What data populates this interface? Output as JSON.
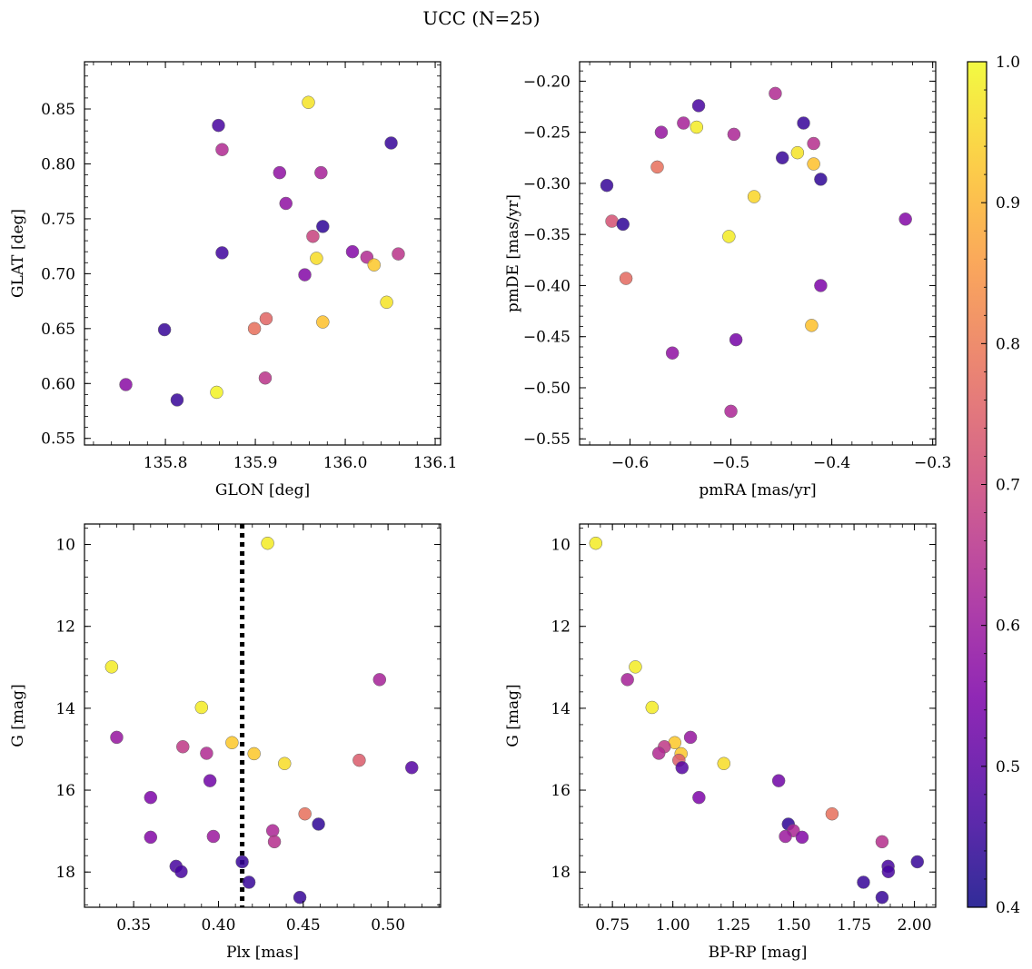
{
  "chart_data": {
    "type": "scatter",
    "title": "UCC (N=25)",
    "colorbar": {
      "colormap": "plasma",
      "range": [
        0.4,
        1.0
      ],
      "ticks": [
        "0.4",
        "0.5",
        "0.6",
        "0.7",
        "0.8",
        "0.9",
        "1.0"
      ]
    },
    "panels": [
      {
        "id": "glon-glat",
        "xlabel": "GLON [deg]",
        "ylabel": "GLAT [deg]",
        "xlim": [
          135.71,
          136.106
        ],
        "ylim": [
          0.544,
          0.893
        ],
        "xticks": [
          "135.8",
          "135.9",
          "136.0",
          "136.1"
        ],
        "yticks": [
          "0.55",
          "0.60",
          "0.65",
          "0.70",
          "0.75",
          "0.80",
          "0.85"
        ],
        "invert_y": false,
        "points": [
          {
            "x": 135.959,
            "y": 0.856,
            "c": 0.97
          },
          {
            "x": 135.859,
            "y": 0.835,
            "c": 0.47
          },
          {
            "x": 136.051,
            "y": 0.819,
            "c": 0.45
          },
          {
            "x": 135.863,
            "y": 0.813,
            "c": 0.64
          },
          {
            "x": 135.927,
            "y": 0.792,
            "c": 0.58
          },
          {
            "x": 135.973,
            "y": 0.792,
            "c": 0.62
          },
          {
            "x": 135.934,
            "y": 0.764,
            "c": 0.58
          },
          {
            "x": 135.975,
            "y": 0.743,
            "c": 0.44
          },
          {
            "x": 135.964,
            "y": 0.734,
            "c": 0.69
          },
          {
            "x": 136.008,
            "y": 0.72,
            "c": 0.56
          },
          {
            "x": 135.863,
            "y": 0.719,
            "c": 0.46
          },
          {
            "x": 136.059,
            "y": 0.718,
            "c": 0.66
          },
          {
            "x": 136.024,
            "y": 0.715,
            "c": 0.64
          },
          {
            "x": 135.968,
            "y": 0.714,
            "c": 0.96
          },
          {
            "x": 136.032,
            "y": 0.708,
            "c": 0.93
          },
          {
            "x": 135.955,
            "y": 0.699,
            "c": 0.56
          },
          {
            "x": 136.046,
            "y": 0.674,
            "c": 0.97
          },
          {
            "x": 135.912,
            "y": 0.659,
            "c": 0.76
          },
          {
            "x": 135.975,
            "y": 0.656,
            "c": 0.92
          },
          {
            "x": 135.899,
            "y": 0.65,
            "c": 0.78
          },
          {
            "x": 135.799,
            "y": 0.649,
            "c": 0.45
          },
          {
            "x": 135.911,
            "y": 0.605,
            "c": 0.66
          },
          {
            "x": 135.756,
            "y": 0.599,
            "c": 0.57
          },
          {
            "x": 135.857,
            "y": 0.592,
            "c": 0.99
          },
          {
            "x": 135.813,
            "y": 0.585,
            "c": 0.45
          }
        ]
      },
      {
        "id": "pm",
        "xlabel": "pmRA [mas/yr]",
        "ylabel": "pmDE [mas/yr]",
        "xlim": [
          -0.65,
          -0.297
        ],
        "ylim": [
          -0.556,
          -0.181
        ],
        "xticks": [
          "−0.6",
          "−0.5",
          "−0.4",
          "−0.3"
        ],
        "yticks": [
          "−0.55",
          "−0.50",
          "−0.45",
          "−0.40",
          "−0.35",
          "−0.30",
          "−0.25",
          "−0.20"
        ],
        "invert_y": false,
        "points": [
          {
            "x": -0.532,
            "y": -0.224,
            "c": 0.47
          },
          {
            "x": -0.456,
            "y": -0.212,
            "c": 0.64
          },
          {
            "x": -0.428,
            "y": -0.241,
            "c": 0.45
          },
          {
            "x": -0.547,
            "y": -0.241,
            "c": 0.62
          },
          {
            "x": -0.534,
            "y": -0.245,
            "c": 0.98
          },
          {
            "x": -0.569,
            "y": -0.25,
            "c": 0.59
          },
          {
            "x": -0.497,
            "y": -0.252,
            "c": 0.63
          },
          {
            "x": -0.418,
            "y": -0.261,
            "c": 0.65
          },
          {
            "x": -0.434,
            "y": -0.27,
            "c": 0.97
          },
          {
            "x": -0.449,
            "y": -0.275,
            "c": 0.45
          },
          {
            "x": -0.418,
            "y": -0.281,
            "c": 0.92
          },
          {
            "x": -0.573,
            "y": -0.284,
            "c": 0.78
          },
          {
            "x": -0.411,
            "y": -0.296,
            "c": 0.44
          },
          {
            "x": -0.623,
            "y": -0.302,
            "c": 0.45
          },
          {
            "x": -0.477,
            "y": -0.313,
            "c": 0.95
          },
          {
            "x": -0.327,
            "y": -0.335,
            "c": 0.56
          },
          {
            "x": -0.618,
            "y": -0.337,
            "c": 0.72
          },
          {
            "x": -0.607,
            "y": -0.34,
            "c": 0.44
          },
          {
            "x": -0.502,
            "y": -0.352,
            "c": 0.98
          },
          {
            "x": -0.604,
            "y": -0.393,
            "c": 0.77
          },
          {
            "x": -0.411,
            "y": -0.4,
            "c": 0.55
          },
          {
            "x": -0.42,
            "y": -0.439,
            "c": 0.92
          },
          {
            "x": -0.495,
            "y": -0.453,
            "c": 0.54
          },
          {
            "x": -0.558,
            "y": -0.466,
            "c": 0.58
          },
          {
            "x": -0.5,
            "y": -0.523,
            "c": 0.63
          }
        ]
      },
      {
        "id": "plx-g",
        "xlabel": "Plx [mas]",
        "ylabel": "G [mag]",
        "xlim": [
          0.321,
          0.531
        ],
        "ylim": [
          18.86,
          9.5
        ],
        "xticks": [
          "0.35",
          "0.40",
          "0.45",
          "0.50"
        ],
        "yticks": [
          "10",
          "12",
          "14",
          "16",
          "18"
        ],
        "invert_y": true,
        "vline": {
          "x": 0.414,
          "style": "dotted"
        },
        "points": [
          {
            "x": 0.429,
            "y": 9.97,
            "c": 0.98
          },
          {
            "x": 0.337,
            "y": 12.99,
            "c": 0.98
          },
          {
            "x": 0.495,
            "y": 13.3,
            "c": 0.62
          },
          {
            "x": 0.39,
            "y": 13.98,
            "c": 0.98
          },
          {
            "x": 0.34,
            "y": 14.71,
            "c": 0.59
          },
          {
            "x": 0.408,
            "y": 14.84,
            "c": 0.93
          },
          {
            "x": 0.379,
            "y": 14.94,
            "c": 0.67
          },
          {
            "x": 0.393,
            "y": 15.1,
            "c": 0.64
          },
          {
            "x": 0.421,
            "y": 15.11,
            "c": 0.93
          },
          {
            "x": 0.483,
            "y": 15.27,
            "c": 0.74
          },
          {
            "x": 0.439,
            "y": 15.35,
            "c": 0.96
          },
          {
            "x": 0.514,
            "y": 15.45,
            "c": 0.49
          },
          {
            "x": 0.395,
            "y": 15.77,
            "c": 0.53
          },
          {
            "x": 0.36,
            "y": 16.18,
            "c": 0.55
          },
          {
            "x": 0.451,
            "y": 16.58,
            "c": 0.78
          },
          {
            "x": 0.459,
            "y": 16.83,
            "c": 0.44
          },
          {
            "x": 0.432,
            "y": 16.99,
            "c": 0.63
          },
          {
            "x": 0.397,
            "y": 17.13,
            "c": 0.6
          },
          {
            "x": 0.36,
            "y": 17.15,
            "c": 0.56
          },
          {
            "x": 0.433,
            "y": 17.26,
            "c": 0.65
          },
          {
            "x": 0.414,
            "y": 17.75,
            "c": 0.45
          },
          {
            "x": 0.375,
            "y": 17.86,
            "c": 0.47
          },
          {
            "x": 0.378,
            "y": 17.99,
            "c": 0.47
          },
          {
            "x": 0.418,
            "y": 18.25,
            "c": 0.45
          },
          {
            "x": 0.448,
            "y": 18.62,
            "c": 0.45
          }
        ]
      },
      {
        "id": "cmd",
        "xlabel": "BP-RP [mag]",
        "ylabel": "G [mag]",
        "xlim": [
          0.614,
          2.088
        ],
        "ylim": [
          18.86,
          9.5
        ],
        "xticks": [
          "0.75",
          "1.00",
          "1.25",
          "1.50",
          "1.75",
          "2.00"
        ],
        "yticks": [
          "10",
          "12",
          "14",
          "16",
          "18"
        ],
        "invert_y": true,
        "points": [
          {
            "x": 0.681,
            "y": 9.97,
            "c": 0.98
          },
          {
            "x": 0.845,
            "y": 12.99,
            "c": 0.98
          },
          {
            "x": 0.812,
            "y": 13.3,
            "c": 0.62
          },
          {
            "x": 0.914,
            "y": 13.98,
            "c": 0.98
          },
          {
            "x": 1.073,
            "y": 14.71,
            "c": 0.59
          },
          {
            "x": 1.008,
            "y": 14.84,
            "c": 0.93
          },
          {
            "x": 0.965,
            "y": 14.94,
            "c": 0.67
          },
          {
            "x": 0.942,
            "y": 15.1,
            "c": 0.64
          },
          {
            "x": 1.034,
            "y": 15.11,
            "c": 0.93
          },
          {
            "x": 1.025,
            "y": 15.27,
            "c": 0.74
          },
          {
            "x": 1.211,
            "y": 15.35,
            "c": 0.96
          },
          {
            "x": 1.038,
            "y": 15.45,
            "c": 0.49
          },
          {
            "x": 1.438,
            "y": 15.77,
            "c": 0.53
          },
          {
            "x": 1.108,
            "y": 16.18,
            "c": 0.55
          },
          {
            "x": 1.659,
            "y": 16.58,
            "c": 0.78
          },
          {
            "x": 1.478,
            "y": 16.83,
            "c": 0.44
          },
          {
            "x": 1.499,
            "y": 16.99,
            "c": 0.63
          },
          {
            "x": 1.466,
            "y": 17.13,
            "c": 0.6
          },
          {
            "x": 1.535,
            "y": 17.15,
            "c": 0.56
          },
          {
            "x": 1.866,
            "y": 17.26,
            "c": 0.65
          },
          {
            "x": 2.012,
            "y": 17.75,
            "c": 0.45
          },
          {
            "x": 1.891,
            "y": 17.86,
            "c": 0.47
          },
          {
            "x": 1.892,
            "y": 17.99,
            "c": 0.47
          },
          {
            "x": 1.789,
            "y": 18.25,
            "c": 0.45
          },
          {
            "x": 1.866,
            "y": 18.62,
            "c": 0.45
          }
        ]
      }
    ]
  }
}
